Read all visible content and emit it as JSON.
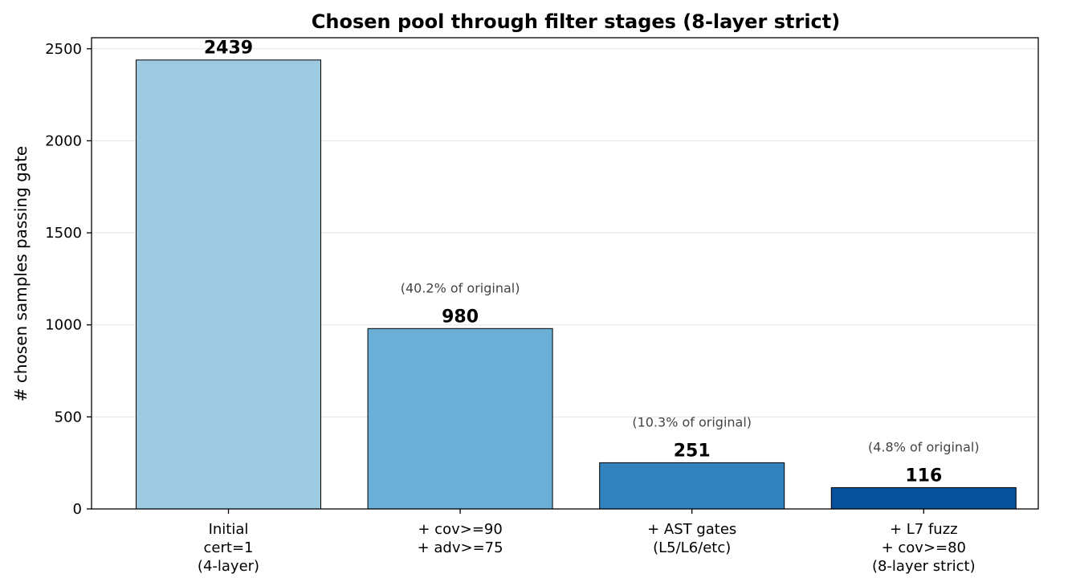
{
  "chart_data": {
    "type": "bar",
    "title": "Chosen pool through filter stages (8-layer strict)",
    "ylabel": "# chosen samples passing gate",
    "xlabel": "",
    "ylim": [
      0,
      2560
    ],
    "yticks": [
      0,
      500,
      1000,
      1500,
      2000,
      2500
    ],
    "grid": true,
    "categories": [
      [
        "Initial",
        "cert=1",
        "(4-layer)"
      ],
      [
        "+ cov>=90",
        "+ adv>=75"
      ],
      [
        "+ AST gates",
        "(L5/L6/etc)"
      ],
      [
        "+ L7 fuzz",
        "+ cov>=80",
        "(8-layer strict)"
      ]
    ],
    "values": [
      2439,
      980,
      251,
      116
    ],
    "value_labels": [
      "2439",
      "980",
      "251",
      "116"
    ],
    "annotations": [
      "",
      "(40.2% of original)",
      "(10.3% of original)",
      "(4.8% of original)"
    ],
    "colors": [
      "#9ecae1",
      "#6baed6",
      "#3182bd",
      "#08519c"
    ]
  }
}
